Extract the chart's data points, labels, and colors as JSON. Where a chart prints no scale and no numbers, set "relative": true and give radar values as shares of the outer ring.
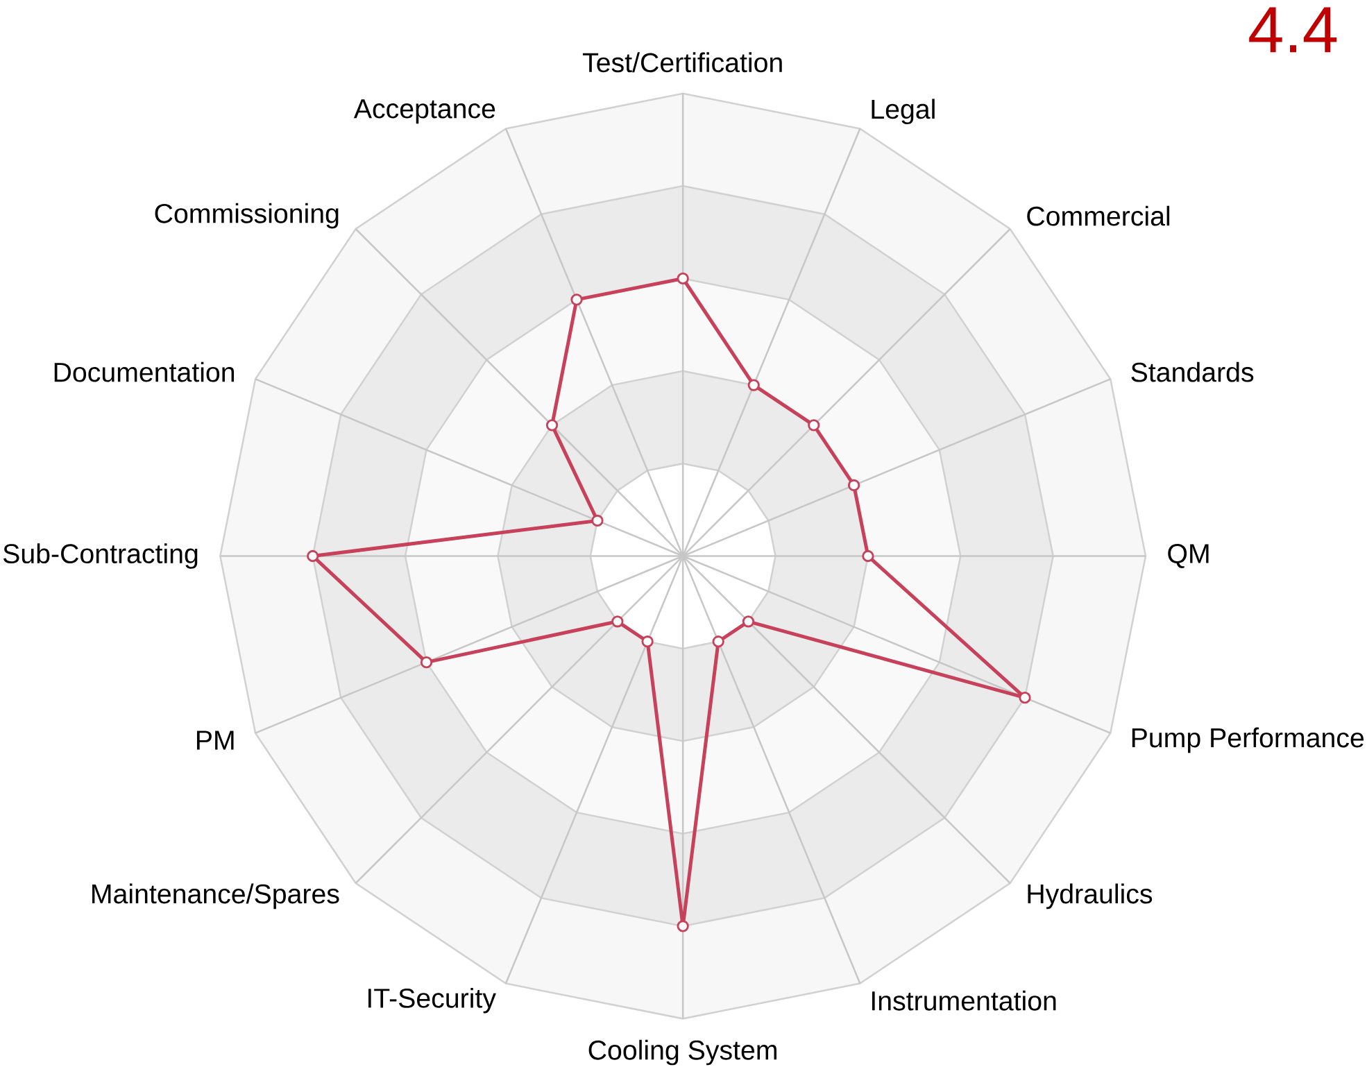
{
  "chart_data": {
    "type": "radar",
    "relative": true,
    "grid": true,
    "marker": "circle",
    "annotations": [
      "4.4"
    ],
    "categories": [
      "Test/Certification",
      "Legal",
      "Commercial",
      "Standards",
      "QM",
      "Pump Performance",
      "Hydraulics",
      "Instrumentation",
      "Cooling System",
      "IT-Security",
      "Maintenance/Spares",
      "PM",
      "Sub-Contracting",
      "Documentation",
      "Commissioning",
      "Acceptance"
    ],
    "series": [
      {
        "color": "#c8415a",
        "values": [
          0.6,
          0.4,
          0.4,
          0.4,
          0.4,
          0.8,
          0.2,
          0.2,
          0.8,
          0.2,
          0.2,
          0.6,
          0.8,
          0.2,
          0.4,
          0.6
        ]
      }
    ]
  }
}
